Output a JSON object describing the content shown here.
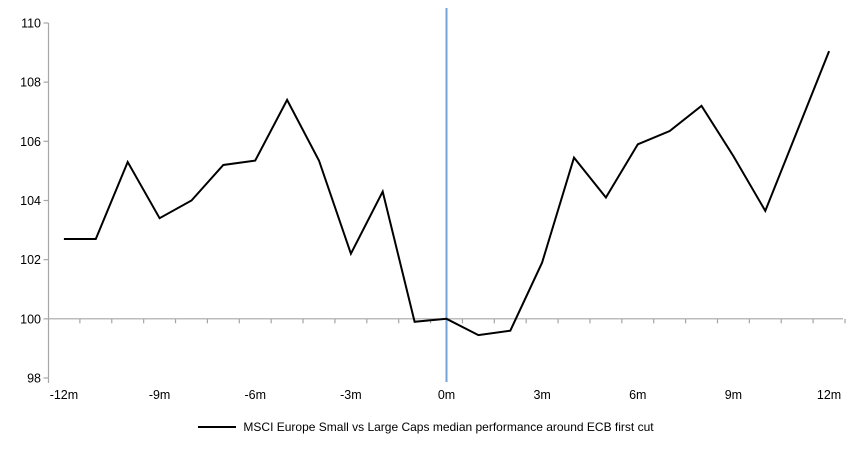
{
  "chart_data": {
    "type": "line",
    "title": "",
    "xlabel": "",
    "ylabel": "",
    "x": [
      -12,
      -11,
      -10,
      -9,
      -8,
      -7,
      -6,
      -5,
      -4,
      -3,
      -2,
      -1,
      0,
      1,
      2,
      3,
      4,
      5,
      6,
      7,
      8,
      9,
      10,
      11,
      12
    ],
    "series": [
      {
        "name": "MSCI Europe Small vs Large Caps median performance around ECB first cut",
        "color": "#000000",
        "values": [
          102.7,
          102.7,
          105.3,
          103.4,
          104.0,
          105.2,
          105.35,
          107.4,
          105.35,
          102.2,
          104.3,
          99.9,
          100.0,
          99.45,
          99.6,
          101.9,
          105.45,
          104.1,
          105.9,
          106.35,
          107.2,
          105.5,
          103.65,
          106.35,
          109.05
        ]
      }
    ],
    "ylim": [
      98,
      110
    ],
    "y_ticks": [
      98,
      100,
      102,
      104,
      106,
      108,
      110
    ],
    "x_tick_values": [
      -12,
      -9,
      -6,
      -3,
      0,
      3,
      6,
      9,
      12
    ],
    "x_tick_labels": [
      "-12m",
      "-9m",
      "-6m",
      "-3m",
      "0m",
      "3m",
      "6m",
      "9m",
      "12m"
    ],
    "grid": false,
    "legend_position": "bottom-center",
    "reference_lines": {
      "vertical_at_x": 0,
      "horizontal_at_y": 100
    }
  },
  "legend": {
    "label": "MSCI Europe Small vs Large Caps median performance around ECB first cut"
  },
  "colors": {
    "series_line": "#000000",
    "event_line": "#74A3D6",
    "axis_gray": "#A6A6A6",
    "tick_label": "#000000",
    "background": "#FFFFFF"
  }
}
